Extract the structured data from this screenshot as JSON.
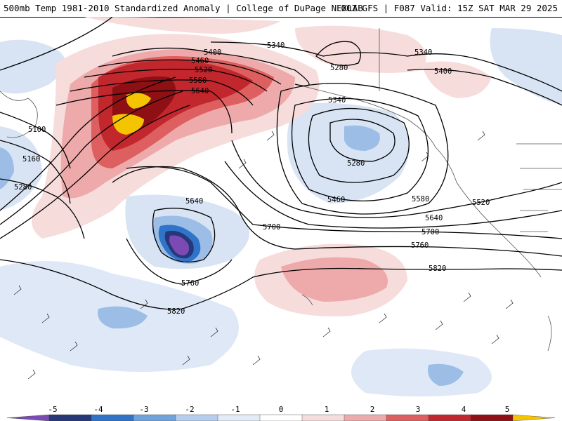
{
  "header": {
    "title_left": "500mb Temp 1981-2010 Standardized Anomaly | College of DuPage NEXLAB",
    "title_right": "00Z GFS | F087 Valid: 15Z SAT MAR 29 2025"
  },
  "colorbar": {
    "labels": [
      "-5",
      "-4",
      "-3",
      "-2",
      "-1",
      "0",
      "1",
      "2",
      "3",
      "4",
      "5"
    ],
    "colors": [
      "#7b4bb3",
      "#26377a",
      "#2f74c9",
      "#6ea3dd",
      "#b5cdee",
      "#e2ebf7",
      "#ffffff",
      "#f7dcdc",
      "#eeaaaa",
      "#dd5f5f",
      "#c1272d",
      "#8e0f14",
      "#f5c400"
    ]
  },
  "map": {
    "contour_labels": [
      "5400",
      "5460",
      "5520",
      "5580",
      "5640",
      "5340",
      "5280",
      "5340",
      "5400",
      "5100",
      "5160",
      "5280",
      "5340",
      "5460",
      "5280",
      "5580",
      "5520",
      "5640",
      "5700",
      "5640",
      "5700",
      "5760",
      "5760",
      "5820",
      "5820"
    ]
  }
}
